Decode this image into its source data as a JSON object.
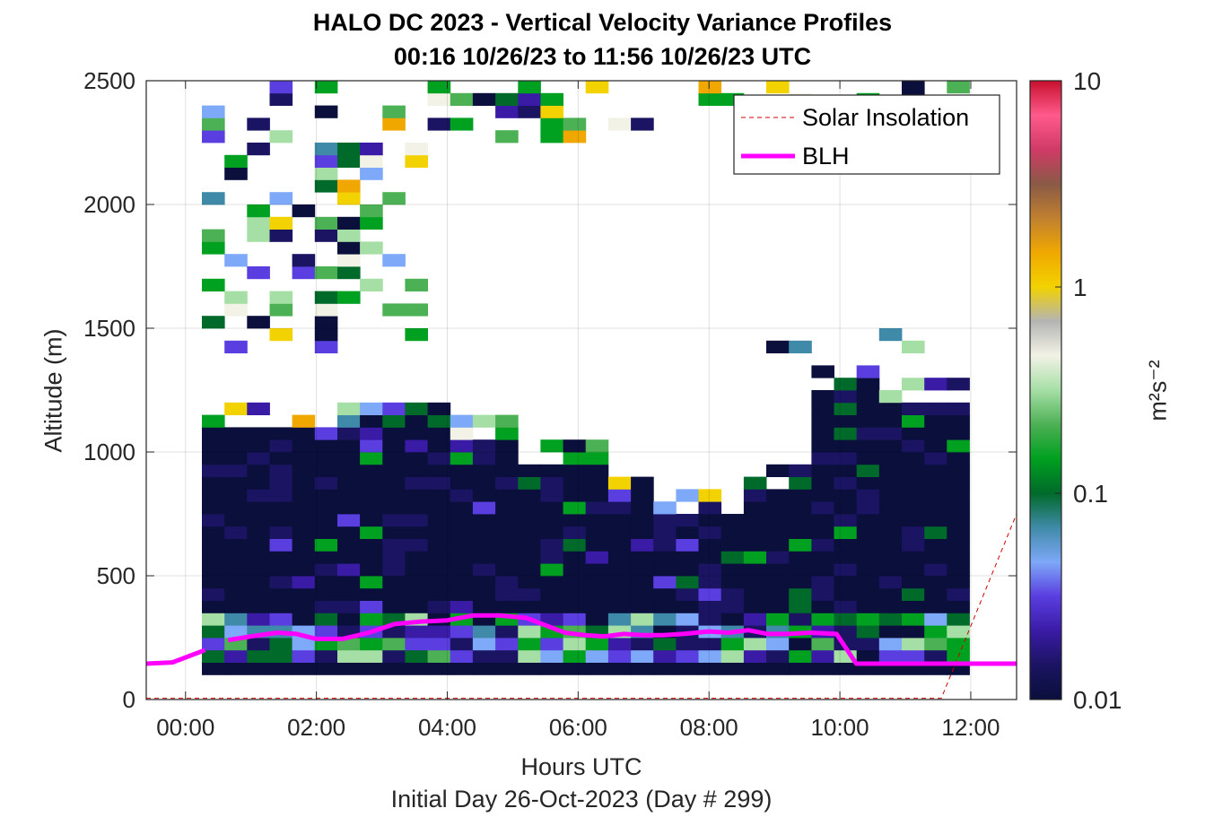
{
  "chart_data": {
    "type": "heatmap",
    "title": "HALO DC 2023 - Vertical Velocity Variance Profiles",
    "subtitle": "00:16 10/26/23 to 11:56 10/26/23  UTC",
    "xlabel": "Hours UTC",
    "xlabel2": "Initial Day 26-Oct-2023 (Day # 299)",
    "ylabel": "Altitude (m)",
    "xlim_hours": [
      -0.6,
      12.7
    ],
    "ylim": [
      0,
      2500
    ],
    "x_ticks": [
      0,
      2,
      4,
      6,
      8,
      10,
      12
    ],
    "x_tick_labels": [
      "00:00",
      "02:00",
      "04:00",
      "06:00",
      "08:00",
      "10:00",
      "12:00"
    ],
    "y_ticks": [
      0,
      500,
      1000,
      1500,
      2000,
      2500
    ],
    "y_tick_labels": [
      "0",
      "500",
      "1000",
      "1500",
      "2000",
      "2500"
    ],
    "grid": true,
    "colorbar": {
      "scale": "log",
      "label": "m²s⁻²",
      "range": [
        0.01,
        10
      ],
      "ticks": [
        0.01,
        0.1,
        1,
        10
      ],
      "tick_labels": [
        "0.01",
        "0.1",
        "1",
        "10"
      ],
      "colors": [
        "#0a0f3c",
        "#1b1462",
        "#3a1ba6",
        "#5a3ee0",
        "#7ea8f8",
        "#3f8aa8",
        "#006a2a",
        "#00a020",
        "#4cb054",
        "#a6dfa6",
        "#f2f2e6",
        "#b4b4b4",
        "#f2d200",
        "#f0a800",
        "#c08030",
        "#8a5a46",
        "#d03a66",
        "#ff5a8c",
        "#c8102e"
      ]
    },
    "heatmap_grid": {
      "time_start_hours": 0.25,
      "time_end_hours": 11.95,
      "column_width_hours": 0.345,
      "altitude_bin_m": 50
    },
    "series": [
      {
        "name": "Solar Insolation",
        "style": "dashed",
        "color": "#d00000",
        "x": [
          -0.6,
          11.55,
          12.7
        ],
        "y": [
          5,
          5,
          750
        ]
      },
      {
        "name": "BLH",
        "style": "solid",
        "color": "#ff00ff",
        "x": [
          -0.6,
          -0.2,
          0.3,
          null,
          0.65,
          1.0,
          1.4,
          1.7,
          2.0,
          2.4,
          2.8,
          3.2,
          3.6,
          4.0,
          4.4,
          4.8,
          5.2,
          5.5,
          5.8,
          6.1,
          6.4,
          6.7,
          7.0,
          7.3,
          7.6,
          8.0,
          8.3,
          8.6,
          8.9,
          9.2,
          9.55,
          9.95,
          10.25,
          10.6,
          11.0,
          11.5,
          12.0,
          12.7
        ],
        "y": [
          145,
          150,
          200,
          null,
          240,
          255,
          270,
          265,
          245,
          245,
          270,
          305,
          315,
          320,
          340,
          340,
          330,
          300,
          270,
          260,
          255,
          265,
          260,
          260,
          265,
          275,
          270,
          280,
          265,
          265,
          270,
          265,
          145,
          145,
          145,
          145,
          145,
          145
        ]
      }
    ],
    "legend": {
      "placement": "top-right",
      "entries": [
        "Solar Insolation",
        "BLH"
      ]
    }
  }
}
